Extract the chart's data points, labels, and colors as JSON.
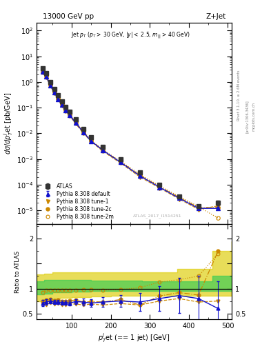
{
  "title_left": "13000 GeV pp",
  "title_right": "Z+Jet",
  "watermark": "ATLAS_2017_I1514251",
  "right_label1": "Rivet 3.1.10, ≥ 2.6M events",
  "right_label2": "[arXiv:1306.3436]",
  "right_label3": "mcplots.cern.ch",
  "atlas_x": [
    25,
    35,
    45,
    55,
    65,
    75,
    85,
    95,
    110,
    130,
    150,
    180,
    225,
    275,
    325,
    375,
    425,
    475
  ],
  "atlas_y": [
    3.5,
    2.2,
    1.0,
    0.55,
    0.3,
    0.18,
    0.11,
    0.07,
    0.035,
    0.015,
    0.007,
    0.003,
    0.001,
    0.0003,
    0.0001,
    3.5e-05,
    1.5e-05,
    2e-05
  ],
  "atlas_yerr": [
    0.25,
    0.12,
    0.05,
    0.03,
    0.018,
    0.01,
    0.006,
    0.004,
    0.002,
    0.0009,
    0.0004,
    0.00015,
    6e-05,
    2e-05,
    8e-06,
    3e-06,
    2e-06,
    4e-06
  ],
  "py_def_x": [
    25,
    35,
    45,
    55,
    65,
    75,
    85,
    95,
    110,
    130,
    150,
    180,
    225,
    275,
    325,
    375,
    425,
    475
  ],
  "py_def_y": [
    2.48,
    1.6,
    0.75,
    0.4,
    0.219,
    0.13,
    0.079,
    0.05,
    0.0259,
    0.011,
    0.00497,
    0.00218,
    0.00075,
    0.00022,
    8e-05,
    3e-05,
    1.2e-05,
    1.2e-05
  ],
  "py_def_yerr": [
    0.08,
    0.05,
    0.025,
    0.013,
    0.007,
    0.004,
    0.003,
    0.002,
    0.001,
    0.0004,
    0.0002,
    8e-05,
    3e-05,
    1e-05,
    5e-06,
    2.5e-06,
    1.5e-06,
    1.5e-06
  ],
  "py_t1_x": [
    25,
    35,
    45,
    55,
    65,
    75,
    85,
    95,
    110,
    130,
    150,
    180,
    225,
    275,
    325,
    375,
    425,
    475
  ],
  "py_t1_y": [
    2.4,
    1.5,
    0.72,
    0.38,
    0.21,
    0.12,
    0.075,
    0.048,
    0.024,
    0.01,
    0.0048,
    0.002,
    0.0007,
    0.0002,
    7.5e-05,
    2.8e-05,
    1.1e-05,
    1.5e-05
  ],
  "py_t2c_x": [
    25,
    35,
    45,
    55,
    65,
    75,
    85,
    95,
    110,
    130,
    150,
    180,
    225,
    275,
    325,
    375,
    425,
    475
  ],
  "py_t2c_y": [
    2.6,
    1.7,
    0.78,
    0.42,
    0.23,
    0.135,
    0.082,
    0.053,
    0.027,
    0.011,
    0.0052,
    0.0022,
    0.00078,
    0.00023,
    8.5e-05,
    3.2e-05,
    1.3e-05,
    1.3e-05
  ],
  "py_t2m_x": [
    25,
    35,
    45,
    55,
    65,
    75,
    85,
    95,
    110,
    130,
    150,
    180,
    225,
    275,
    325,
    375,
    425,
    475
  ],
  "py_t2m_y": [
    2.7,
    1.75,
    0.82,
    0.44,
    0.24,
    0.14,
    0.086,
    0.055,
    0.028,
    0.012,
    0.0055,
    0.0023,
    0.00082,
    0.00025,
    9e-05,
    3.5e-05,
    1.4e-05,
    5e-06
  ],
  "ratio_def_y": [
    0.71,
    0.73,
    0.75,
    0.73,
    0.73,
    0.72,
    0.72,
    0.71,
    0.74,
    0.73,
    0.71,
    0.73,
    0.75,
    0.73,
    0.8,
    0.86,
    0.8,
    0.6
  ],
  "ratio_def_yerr": [
    0.06,
    0.05,
    0.05,
    0.04,
    0.04,
    0.04,
    0.04,
    0.05,
    0.05,
    0.07,
    0.08,
    0.1,
    0.12,
    0.18,
    0.25,
    0.35,
    0.45,
    0.55
  ],
  "ratio_t1_y": [
    0.69,
    0.68,
    0.72,
    0.69,
    0.7,
    0.67,
    0.68,
    0.69,
    0.69,
    0.67,
    0.69,
    0.67,
    0.7,
    0.67,
    0.75,
    0.8,
    0.73,
    0.75
  ],
  "ratio_t2c_y": [
    0.74,
    0.77,
    0.78,
    0.76,
    0.77,
    0.75,
    0.75,
    0.76,
    0.77,
    0.73,
    0.74,
    0.73,
    0.78,
    0.67,
    0.85,
    0.92,
    0.87,
    1.75
  ],
  "ratio_t2m_y": [
    0.93,
    0.96,
    0.97,
    0.97,
    0.97,
    0.96,
    0.97,
    0.97,
    0.97,
    0.98,
    0.98,
    0.97,
    0.98,
    1.02,
    1.13,
    1.18,
    1.25,
    1.7
  ],
  "band_x": [
    10,
    30,
    50,
    70,
    100,
    150,
    200,
    280,
    370,
    460,
    510
  ],
  "band_green_lo": [
    0.88,
    0.9,
    0.92,
    0.93,
    0.94,
    0.95,
    0.95,
    0.95,
    0.95,
    0.95,
    0.95
  ],
  "band_green_hi": [
    1.15,
    1.17,
    1.17,
    1.17,
    1.17,
    1.16,
    1.16,
    1.15,
    1.15,
    1.25,
    1.25
  ],
  "band_yellow_lo": [
    0.75,
    0.78,
    0.8,
    0.82,
    0.83,
    0.84,
    0.85,
    0.85,
    0.85,
    0.85,
    0.85
  ],
  "band_yellow_hi": [
    1.28,
    1.3,
    1.32,
    1.33,
    1.33,
    1.33,
    1.33,
    1.33,
    1.4,
    1.75,
    1.95
  ],
  "color_atlas": "#333333",
  "color_default": "#1111cc",
  "color_tune": "#cc8800",
  "color_green": "#33cc55",
  "color_yellow": "#ddcc00",
  "ylim_main": [
    3e-06,
    200
  ],
  "ylim_ratio": [
    0.38,
    2.3
  ],
  "xlim": [
    10,
    510
  ],
  "ratio_yticks": [
    0.5,
    1.0,
    1.5,
    2.0
  ],
  "ratio_yticklabels": [
    "0.5",
    "1",
    "",
    "2"
  ]
}
